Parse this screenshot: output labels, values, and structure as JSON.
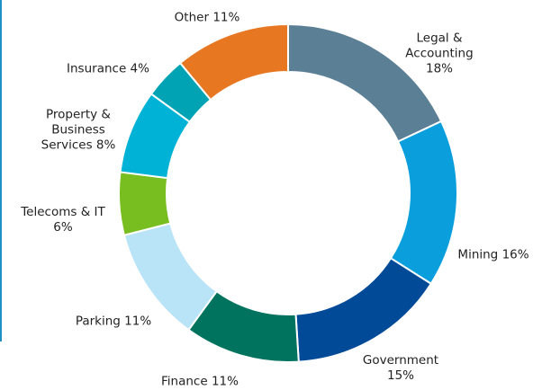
{
  "chart_data": {
    "type": "donut",
    "categories": [
      "Legal & Accounting",
      "Mining",
      "Government",
      "Finance",
      "Parking",
      "Telecoms & IT",
      "Property & Business Services",
      "Insurance",
      "Other"
    ],
    "values": [
      18,
      16,
      15,
      11,
      11,
      6,
      8,
      4,
      11
    ],
    "value_labels": [
      "18%",
      "16%",
      "15%",
      "11%",
      "11%",
      "6%",
      "8%",
      "4%",
      "11%"
    ],
    "colors": [
      "#5b7f95",
      "#0a9fdc",
      "#004a97",
      "#00735f",
      "#b9e3f6",
      "#78be20",
      "#00b2d5",
      "#00a3b4",
      "#e87722"
    ]
  }
}
